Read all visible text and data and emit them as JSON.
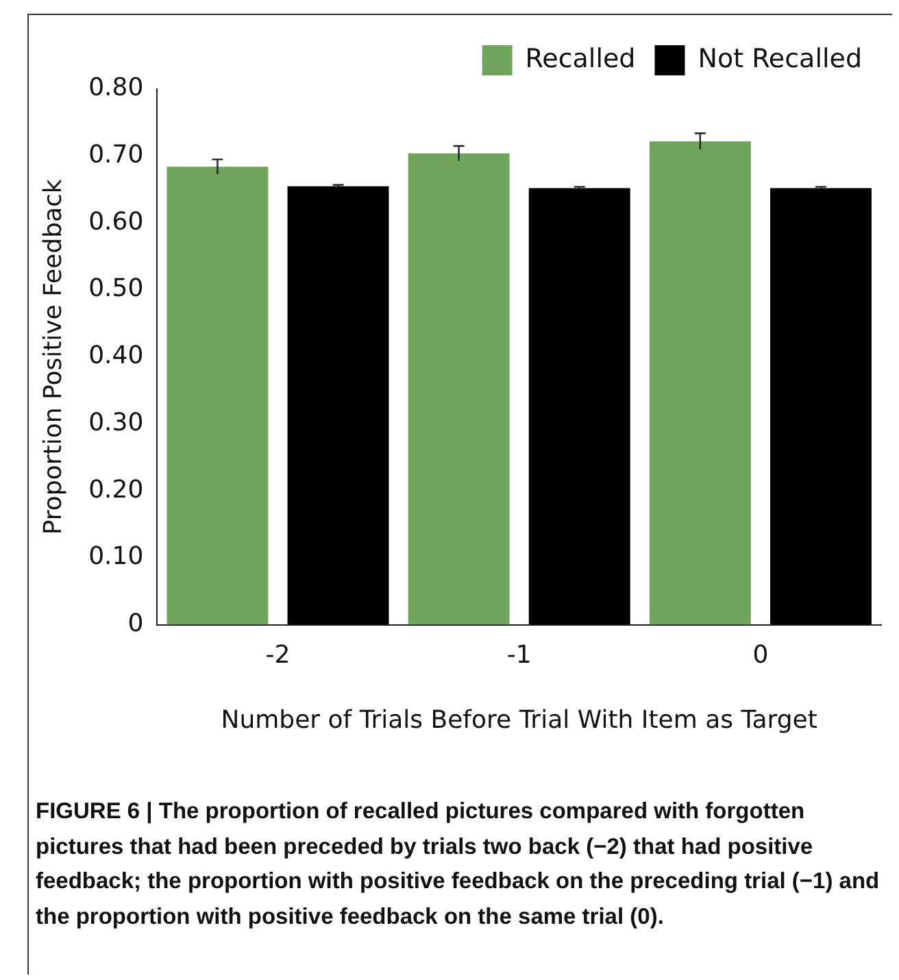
{
  "chart_data": {
    "type": "bar",
    "categories": [
      "-2",
      "-1",
      "0"
    ],
    "series": [
      {
        "name": "Recalled",
        "color": "#6fa55b",
        "values": [
          0.684,
          0.704,
          0.722
        ],
        "errors": [
          0.011,
          0.011,
          0.012
        ]
      },
      {
        "name": "Not Recalled",
        "color": "#000000",
        "values": [
          0.655,
          0.652,
          0.652
        ],
        "errors": [
          0.002,
          0.002,
          0.002
        ]
      }
    ],
    "ylim": [
      0,
      0.8
    ],
    "yticks": [
      0,
      {
        "value": 0.1,
        "label": "0.10"
      },
      {
        "value": 0.2,
        "label": "0.20"
      },
      {
        "value": 0.3,
        "label": "0.30"
      },
      {
        "value": 0.4,
        "label": "0.40"
      },
      {
        "value": 0.5,
        "label": "0.50"
      },
      {
        "value": 0.6,
        "label": "0.60"
      },
      {
        "value": 0.7,
        "label": "0.70"
      },
      {
        "value": 0.8,
        "label": "0.80"
      }
    ],
    "xlabel": "Number of Trials Before Trial With Item as Target",
    "ylabel": "Proportion Positive Feedback",
    "legend": "top right",
    "grid": false,
    "annotations": [
      "FIGURE 6 | The proportion of recalled pictures compared with forgotten pictures that had been preceded by trials two back (−2) that had positive feedback; the proportion with positive feedback on the preceding trial (−1) and the proportion with positive feedback on the same trial (0)."
    ]
  }
}
